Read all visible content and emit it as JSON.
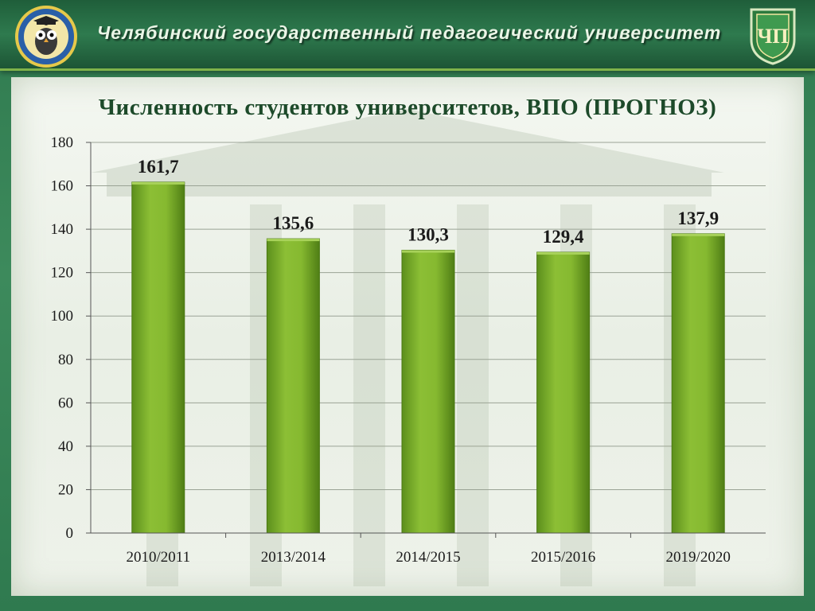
{
  "header": {
    "title": "Челябинский государственный педагогический университет",
    "logo_left_icon": "owl-emblem-icon",
    "logo_right_icon": "university-crest-icon"
  },
  "colors": {
    "header": "#2e7a4e",
    "accent": "#7fb34a",
    "bar": "#77a92a",
    "title": "#1d4a2a"
  },
  "chart_data": {
    "type": "bar",
    "title": "Численность студентов университетов, ВПО (ПРОГНОЗ)",
    "categories": [
      "2010/2011",
      "2013/2014",
      "2014/2015",
      "2015/2016",
      "2019/2020"
    ],
    "values": [
      161.7,
      135.6,
      130.3,
      129.4,
      137.9
    ],
    "value_labels": [
      "161,7",
      "135,6",
      "130,3",
      "129,4",
      "137,9"
    ],
    "ylim": [
      0,
      180
    ],
    "yticks": [
      0,
      20,
      40,
      60,
      80,
      100,
      120,
      140,
      160,
      180
    ],
    "grid": true,
    "legend": "none"
  }
}
